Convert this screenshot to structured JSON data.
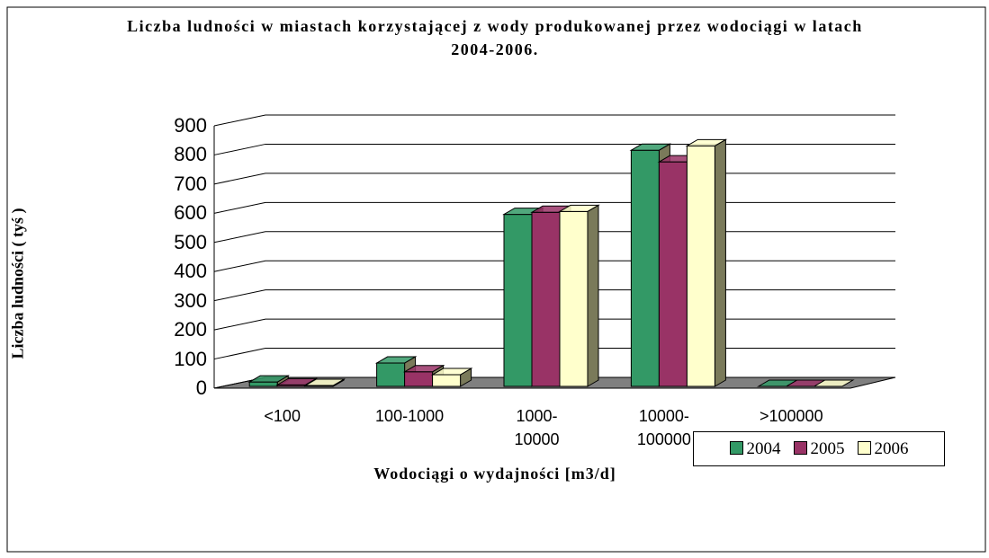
{
  "chart_data": {
    "type": "bar3d",
    "title": "Liczba ludności w miastach korzystającej z wody produkowanej przez wodociągi w latach 2004-2006.",
    "y_label": "Liczba ludności ( tyś )",
    "x_label": "Wodociągi o wydajności [m3/d]",
    "categories": [
      "<100",
      "100-1000",
      "1000-10000",
      "10000-100000",
      ">100000"
    ],
    "series": [
      {
        "name": "2004",
        "color": "#339966",
        "values": [
          15,
          80,
          590,
          810,
          0
        ]
      },
      {
        "name": "2005",
        "color": "#993366",
        "values": [
          5,
          50,
          597,
          770,
          0
        ]
      },
      {
        "name": "2006",
        "color": "#ffffcc",
        "values": [
          3,
          40,
          600,
          825,
          0
        ]
      }
    ],
    "ylim": [
      0,
      900
    ],
    "yticks": [
      0,
      100,
      200,
      300,
      400,
      500,
      600,
      700,
      800,
      900
    ],
    "grid": true,
    "legend": "bottom-right"
  }
}
